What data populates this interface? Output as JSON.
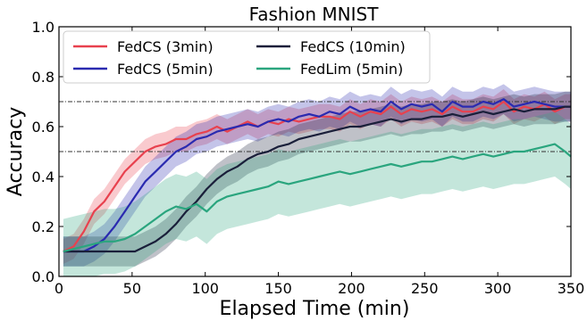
{
  "chart_data": {
    "type": "line",
    "title": "Fashion MNIST",
    "xlabel": "Elapsed Time (min)",
    "ylabel": "Accuracy",
    "xlim": [
      0,
      350
    ],
    "ylim": [
      0.0,
      1.0
    ],
    "xticks": [
      "0",
      "50",
      "100",
      "150",
      "200",
      "250",
      "300",
      "350"
    ],
    "yticks": [
      "0.0",
      "0.2",
      "0.4",
      "0.6",
      "0.8",
      "1.0"
    ],
    "reference_lines": [
      0.7,
      0.5
    ],
    "legend_position": "top-left",
    "grid": false,
    "series": [
      {
        "name": "FedCS (3min)",
        "color": "#e8414e",
        "x": [
          3,
          10,
          17,
          24,
          31,
          38,
          45,
          52,
          59,
          66,
          73,
          80,
          87,
          94,
          101,
          108,
          115,
          122,
          129,
          136,
          143,
          150,
          157,
          164,
          171,
          178,
          185,
          192,
          199,
          206,
          213,
          220,
          227,
          234,
          241,
          248,
          255,
          262,
          269,
          276,
          283,
          290,
          297,
          304,
          311,
          318,
          325,
          332,
          339,
          346,
          350
        ],
        "y": [
          0.1,
          0.12,
          0.18,
          0.26,
          0.3,
          0.36,
          0.42,
          0.46,
          0.5,
          0.52,
          0.53,
          0.55,
          0.55,
          0.57,
          0.58,
          0.6,
          0.58,
          0.6,
          0.62,
          0.6,
          0.62,
          0.61,
          0.63,
          0.62,
          0.63,
          0.64,
          0.64,
          0.63,
          0.66,
          0.64,
          0.66,
          0.65,
          0.68,
          0.65,
          0.67,
          0.66,
          0.67,
          0.65,
          0.68,
          0.66,
          0.66,
          0.68,
          0.67,
          0.7,
          0.66,
          0.68,
          0.67,
          0.69,
          0.66,
          0.68,
          0.68
        ],
        "band": 0.05
      },
      {
        "name": "FedCS (5min)",
        "color": "#2a2ab0",
        "x": [
          3,
          10,
          17,
          24,
          31,
          38,
          45,
          52,
          59,
          66,
          73,
          80,
          87,
          94,
          101,
          108,
          115,
          122,
          129,
          136,
          143,
          150,
          157,
          164,
          171,
          178,
          185,
          192,
          199,
          206,
          213,
          220,
          227,
          234,
          241,
          248,
          255,
          262,
          269,
          276,
          283,
          290,
          297,
          304,
          311,
          318,
          325,
          332,
          339,
          346,
          350
        ],
        "y": [
          0.1,
          0.1,
          0.1,
          0.12,
          0.15,
          0.2,
          0.26,
          0.32,
          0.38,
          0.42,
          0.46,
          0.5,
          0.52,
          0.55,
          0.56,
          0.58,
          0.59,
          0.6,
          0.61,
          0.6,
          0.62,
          0.63,
          0.62,
          0.64,
          0.65,
          0.64,
          0.66,
          0.65,
          0.68,
          0.66,
          0.67,
          0.66,
          0.7,
          0.67,
          0.69,
          0.68,
          0.69,
          0.66,
          0.7,
          0.68,
          0.68,
          0.7,
          0.69,
          0.71,
          0.68,
          0.69,
          0.7,
          0.69,
          0.68,
          0.68,
          0.68
        ],
        "band": 0.06
      },
      {
        "name": "FedCS (10min)",
        "color": "#1a1f3a",
        "x": [
          3,
          10,
          17,
          24,
          31,
          38,
          45,
          52,
          59,
          66,
          73,
          80,
          87,
          94,
          101,
          108,
          115,
          122,
          129,
          136,
          143,
          150,
          157,
          164,
          171,
          178,
          185,
          192,
          199,
          206,
          213,
          220,
          227,
          234,
          241,
          248,
          255,
          262,
          269,
          276,
          283,
          290,
          297,
          304,
          311,
          318,
          325,
          332,
          339,
          346,
          350
        ],
        "y": [
          0.1,
          0.1,
          0.1,
          0.1,
          0.1,
          0.1,
          0.1,
          0.1,
          0.12,
          0.14,
          0.17,
          0.21,
          0.26,
          0.3,
          0.35,
          0.39,
          0.42,
          0.44,
          0.47,
          0.49,
          0.5,
          0.52,
          0.53,
          0.55,
          0.56,
          0.57,
          0.58,
          0.59,
          0.6,
          0.6,
          0.61,
          0.62,
          0.63,
          0.62,
          0.63,
          0.63,
          0.64,
          0.64,
          0.65,
          0.64,
          0.65,
          0.66,
          0.65,
          0.66,
          0.67,
          0.66,
          0.67,
          0.67,
          0.67,
          0.68,
          0.68
        ],
        "band": 0.06
      },
      {
        "name": "FedLim (5min)",
        "color": "#2aa57e",
        "x": [
          3,
          10,
          17,
          24,
          31,
          38,
          45,
          52,
          59,
          66,
          73,
          80,
          87,
          94,
          101,
          108,
          115,
          122,
          129,
          136,
          143,
          150,
          157,
          164,
          171,
          178,
          185,
          192,
          199,
          206,
          213,
          220,
          227,
          234,
          241,
          248,
          255,
          262,
          269,
          276,
          283,
          290,
          297,
          304,
          311,
          318,
          325,
          332,
          339,
          346,
          350
        ],
        "y": [
          0.1,
          0.11,
          0.12,
          0.13,
          0.14,
          0.14,
          0.15,
          0.17,
          0.2,
          0.23,
          0.26,
          0.28,
          0.27,
          0.29,
          0.26,
          0.3,
          0.32,
          0.33,
          0.34,
          0.35,
          0.36,
          0.38,
          0.37,
          0.38,
          0.39,
          0.4,
          0.41,
          0.42,
          0.41,
          0.42,
          0.43,
          0.44,
          0.45,
          0.44,
          0.45,
          0.46,
          0.46,
          0.47,
          0.48,
          0.47,
          0.48,
          0.49,
          0.48,
          0.49,
          0.5,
          0.5,
          0.51,
          0.52,
          0.53,
          0.5,
          0.48
        ],
        "band": 0.13
      }
    ]
  }
}
